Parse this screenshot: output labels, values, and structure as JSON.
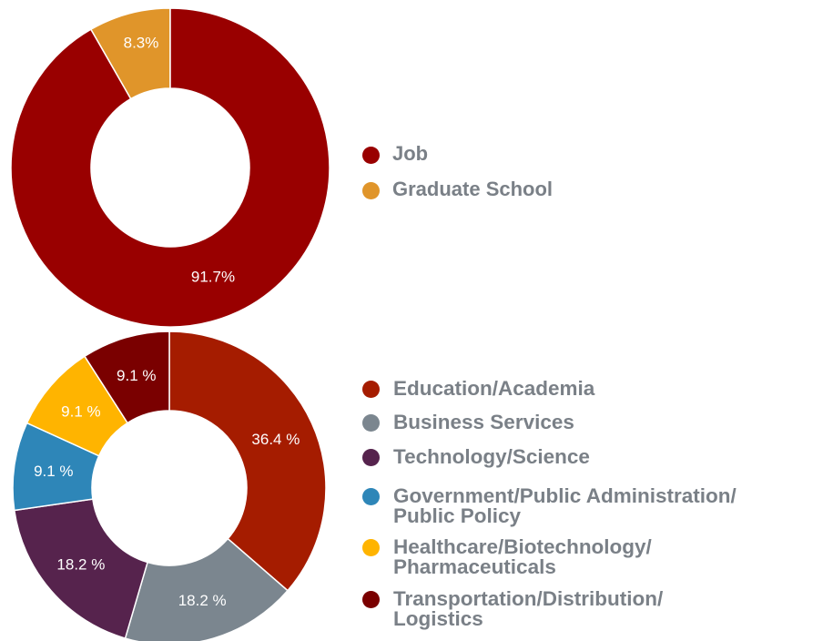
{
  "chart_data": [
    {
      "type": "pie",
      "variant": "donut",
      "categories": [
        "Graduate School",
        "Job"
      ],
      "values": [
        8.3,
        91.7
      ],
      "labels": [
        "8.3%",
        "91.7%"
      ],
      "colors": [
        "#e0952a",
        "#990000"
      ],
      "legend_placement": "right",
      "legend": [
        {
          "label": "Job",
          "color": "#990000"
        },
        {
          "label": "Graduate School",
          "color": "#e0952a"
        }
      ]
    },
    {
      "type": "pie",
      "variant": "donut",
      "categories": [
        "Education/Academia",
        "Business Services",
        "Technology/Science",
        "Government/Public Administration/ Public Policy",
        "Healthcare/Biotechnology/ Pharmaceuticals",
        "Transportation/Distribution/ Logistics"
      ],
      "values": [
        36.4,
        18.2,
        18.2,
        9.1,
        9.1,
        9.1
      ],
      "labels": [
        "36.4 %",
        "18.2 %",
        "18.2 %",
        "9.1 %",
        "9.1 %",
        "9.1 %"
      ],
      "colors": [
        "#a51c00",
        "#7b868f",
        "#56234d",
        "#2e86b8",
        "#ffb400",
        "#7a0000"
      ],
      "legend_placement": "right",
      "legend": [
        {
          "label": "Education/Academia",
          "color": "#a51c00"
        },
        {
          "label": "Business Services",
          "color": "#7b868f"
        },
        {
          "label": "Technology/Science",
          "color": "#56234d"
        },
        {
          "label": "Government/Public Administration/\nPublic Policy",
          "color": "#2e86b8"
        },
        {
          "label": "Healthcare/Biotechnology/\nPharmaceuticals",
          "color": "#ffb400"
        },
        {
          "label": "Transportation/Distribution/\nLogistics",
          "color": "#7a0000"
        }
      ]
    }
  ]
}
